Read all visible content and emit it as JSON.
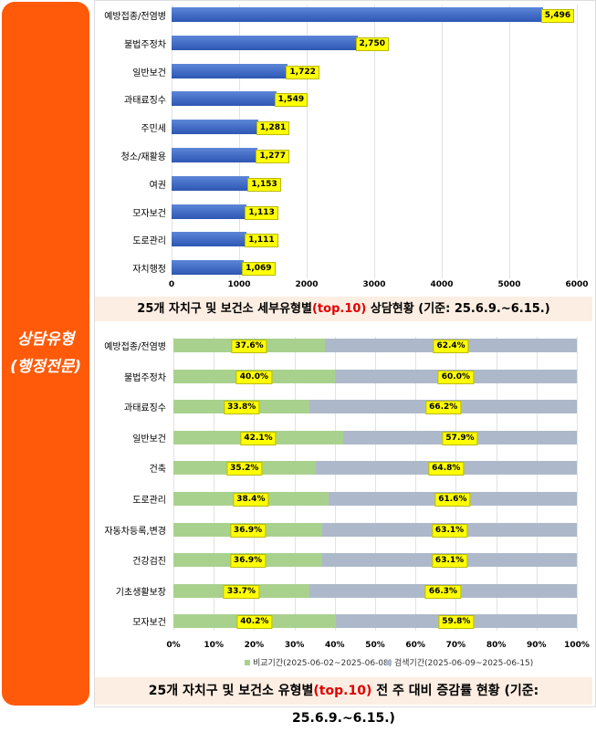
{
  "side_title": [
    "상담유형",
    "(행정전문)"
  ],
  "chart_data": [
    {
      "type": "bar",
      "orientation": "horizontal",
      "categories": [
        "예방접종/전염병",
        "불법주정차",
        "일반보건",
        "과태료징수",
        "주민세",
        "청소/재활용",
        "여권",
        "모자보건",
        "도로관리",
        "자치행정"
      ],
      "values": [
        5496,
        2750,
        1722,
        1549,
        1281,
        1277,
        1153,
        1113,
        1111,
        1069
      ],
      "value_labels": [
        "5,496",
        "2,750",
        "1,722",
        "1,549",
        "1,281",
        "1,277",
        "1,153",
        "1,113",
        "1,111",
        "1,069"
      ],
      "xlim": [
        0,
        6000
      ],
      "xticks": [
        "0",
        "1000",
        "2000",
        "3000",
        "4000",
        "5000",
        "6000"
      ],
      "color": "#3A66C4",
      "caption": {
        "pre": "25개 자치구 및 보건소 세부유형별",
        "red": "(top.10)",
        "post": " 상담현황  (기준: 25.6.9.~6.15.)"
      }
    },
    {
      "type": "bar",
      "orientation": "horizontal",
      "stacked": "percent",
      "categories": [
        "예방접종/전염병",
        "불법주정차",
        "과태료징수",
        "일반보건",
        "건축",
        "도로관리",
        "자동차등록,변경",
        "건강검진",
        "기초생활보장",
        "모자보건"
      ],
      "series": [
        {
          "name": "비교기간(2025-06-02~2025-06-08)",
          "color": "#A9D18E",
          "values": [
            37.6,
            40.0,
            33.8,
            42.1,
            35.2,
            38.4,
            36.9,
            36.9,
            33.7,
            40.2
          ],
          "labels": [
            "37.6%",
            "40.0%",
            "33.8%",
            "42.1%",
            "35.2%",
            "38.4%",
            "36.9%",
            "36.9%",
            "33.7%",
            "40.2%"
          ]
        },
        {
          "name": "검색기간(2025-06-09~2025-06-15)",
          "color": "#ADB9CA",
          "values": [
            62.4,
            60.0,
            66.2,
            57.9,
            64.8,
            61.6,
            63.1,
            63.1,
            66.3,
            59.8
          ],
          "labels": [
            "62.4%",
            "60.0%",
            "66.2%",
            "57.9%",
            "64.8%",
            "61.6%",
            "63.1%",
            "63.1%",
            "66.3%",
            "59.8%"
          ]
        }
      ],
      "xlim": [
        0,
        100
      ],
      "xticks": [
        "0%",
        "10%",
        "20%",
        "30%",
        "40%",
        "50%",
        "60%",
        "70%",
        "80%",
        "90%",
        "100%"
      ],
      "legend": "bottom",
      "caption": {
        "pre": "25개 자치구 및 보건소 유형별",
        "red": "(top.10)",
        "post": " 전 주 대비 증감률 현황 (기준: 25.6.9.~6.15.)"
      }
    }
  ]
}
